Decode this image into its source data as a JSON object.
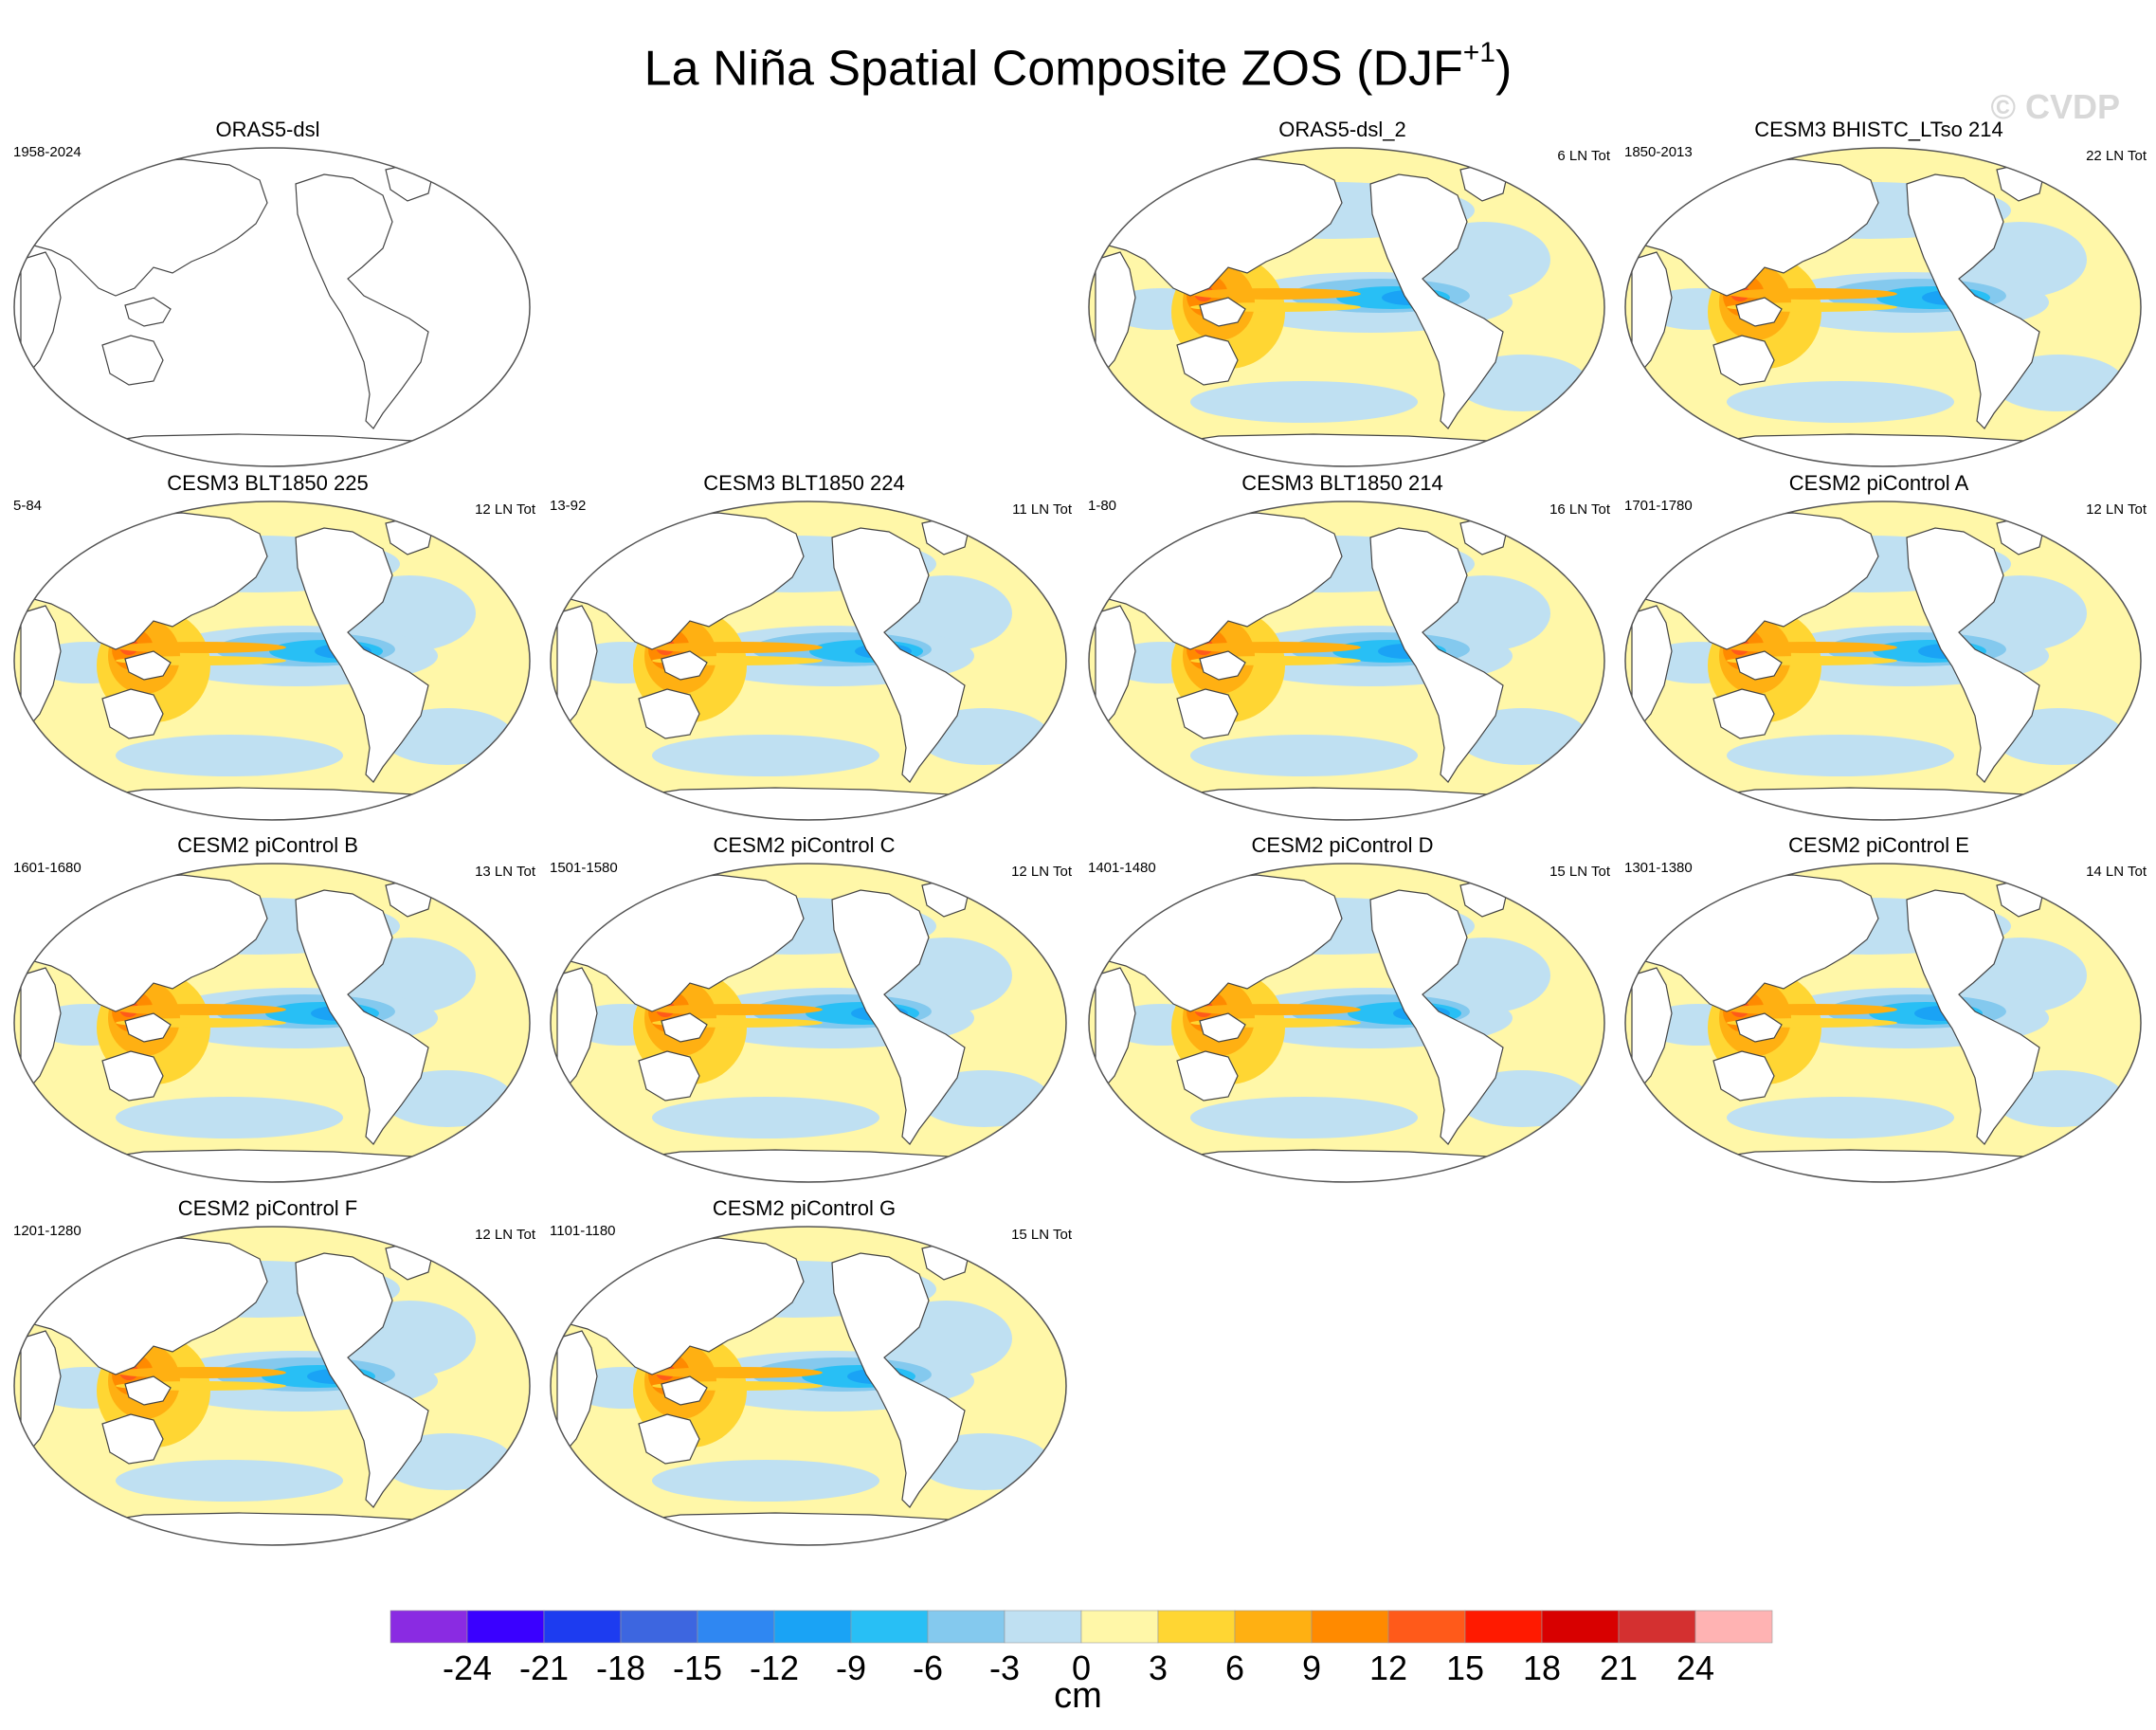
{
  "title_main": "La Niña Spatial Composite ZOS (DJF",
  "title_sup": "+1",
  "title_close": ")",
  "watermark": "© CVDP",
  "panels": [
    {
      "name": "ORAS5-dsl",
      "years": "1958-2024",
      "count": "",
      "empty": true
    },
    {
      "name": "ORAS5-dsl_2",
      "years": "",
      "count": "6 LN Tot",
      "empty": false
    },
    {
      "name": "CESM3 BHISTC_LTso 214",
      "years": "1850-2013",
      "count": "22 LN Tot",
      "empty": false
    },
    {
      "name": "CESM3 BLT1850 225",
      "years": "5-84",
      "count": "12 LN Tot",
      "empty": false
    },
    {
      "name": "CESM3 BLT1850 224",
      "years": "13-92",
      "count": "11 LN Tot",
      "empty": false
    },
    {
      "name": "CESM3 BLT1850 214",
      "years": "1-80",
      "count": "16 LN Tot",
      "empty": false
    },
    {
      "name": "CESM2 piControl A",
      "years": "1701-1780",
      "count": "12 LN Tot",
      "empty": false
    },
    {
      "name": "CESM2 piControl B",
      "years": "1601-1680",
      "count": "13 LN Tot",
      "empty": false
    },
    {
      "name": "CESM2 piControl C",
      "years": "1501-1580",
      "count": "12 LN Tot",
      "empty": false
    },
    {
      "name": "CESM2 piControl D",
      "years": "1401-1480",
      "count": "15 LN Tot",
      "empty": false
    },
    {
      "name": "CESM2 piControl E",
      "years": "1301-1380",
      "count": "14 LN Tot",
      "empty": false
    },
    {
      "name": "CESM2 piControl F",
      "years": "1201-1280",
      "count": "12 LN Tot",
      "empty": false
    },
    {
      "name": "CESM2 piControl G",
      "years": "1101-1180",
      "count": "15 LN Tot",
      "empty": false
    }
  ],
  "chart_data": {
    "type": "heatmap",
    "title": "La Niña Spatial Composite ZOS (DJF+1)",
    "colorbar": {
      "units": "cm",
      "ticks": [
        "-24",
        "-21",
        "-18",
        "-15",
        "-12",
        "-9",
        "-6",
        "-3",
        "0",
        "3",
        "6",
        "9",
        "12",
        "15",
        "18",
        "21",
        "24"
      ],
      "levels": [
        -24,
        -21,
        -18,
        -15,
        -12,
        -9,
        -6,
        -3,
        0,
        3,
        6,
        9,
        12,
        15,
        18,
        21,
        24
      ],
      "colors": [
        "#8a2be2",
        "#3a00ff",
        "#1d3cf0",
        "#3d66e0",
        "#2f87f2",
        "#1aa3f5",
        "#28bff5",
        "#84c9ee",
        "#bfe0f2",
        "#fff7a8",
        "#ffd633",
        "#ffb012",
        "#ff8a00",
        "#ff5a1a",
        "#ff1a00",
        "#d80000",
        "#d43030",
        "#ffb3b3"
      ]
    },
    "panels": [
      {
        "name": "ORAS5-dsl",
        "years": "1958-2024",
        "la_nina_count": null,
        "data": "none"
      },
      {
        "name": "ORAS5-dsl_2",
        "years": "",
        "la_nina_count": 6
      },
      {
        "name": "CESM3 BHISTC_LTso 214",
        "years": "1850-2013",
        "la_nina_count": 22
      },
      {
        "name": "CESM3 BLT1850 225",
        "years": "5-84",
        "la_nina_count": 12
      },
      {
        "name": "CESM3 BLT1850 224",
        "years": "13-92",
        "la_nina_count": 11
      },
      {
        "name": "CESM3 BLT1850 214",
        "years": "1-80",
        "la_nina_count": 16
      },
      {
        "name": "CESM2 piControl A",
        "years": "1701-1780",
        "la_nina_count": 12
      },
      {
        "name": "CESM2 piControl B",
        "years": "1601-1680",
        "la_nina_count": 13
      },
      {
        "name": "CESM2 piControl C",
        "years": "1501-1580",
        "la_nina_count": 12
      },
      {
        "name": "CESM2 piControl D",
        "years": "1401-1480",
        "la_nina_count": 15
      },
      {
        "name": "CESM2 piControl E",
        "years": "1301-1380",
        "la_nina_count": 14
      },
      {
        "name": "CESM2 piControl F",
        "years": "1201-1280",
        "la_nina_count": 12
      },
      {
        "name": "CESM2 piControl G",
        "years": "1101-1180",
        "la_nina_count": 15
      }
    ]
  }
}
